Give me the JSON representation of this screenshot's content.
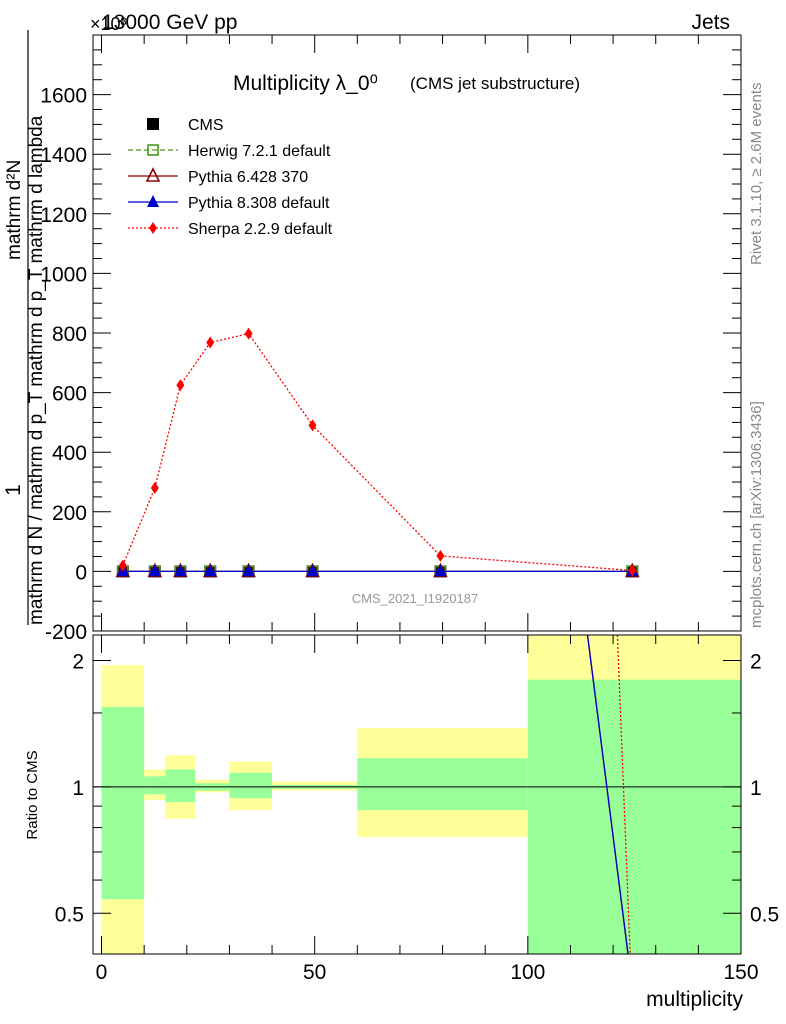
{
  "header": {
    "energy_label": "13000 GeV pp",
    "process_label": "Jets",
    "exponent_label": "×10³"
  },
  "side_labels": {
    "rivet": "Rivet 3.1.10, ≥ 2.6M events",
    "mcplots": "mcplots.cern.ch [arXiv:1306.3436]"
  },
  "chart_data": [
    {
      "type": "line",
      "title": "Multiplicity λ_0⁰",
      "subtitle": "(CMS jet substructure)",
      "watermark": "CMS_2021_I1920187",
      "ylabel_numerator": "1",
      "ylabel_denominator": "mathrm d N / mathrm d p_T mathrm d p_T mathrm d lambda",
      "ylabel_top": "mathrm d²N",
      "xlim": [
        -2,
        150
      ],
      "ylim": [
        -200,
        1800
      ],
      "y_scale_factor": 1000,
      "y_ticks": [
        -200,
        0,
        200,
        400,
        600,
        800,
        1000,
        1200,
        1400,
        1600
      ],
      "x": [
        5,
        12.5,
        18.5,
        25.5,
        34.5,
        49.5,
        79.5,
        124.5
      ],
      "legend_placement": "top-left",
      "series": [
        {
          "name": "CMS",
          "color": "#000000",
          "marker": "square",
          "line": "none",
          "values": [
            0,
            0,
            0,
            0,
            0,
            0,
            0,
            0
          ]
        },
        {
          "name": "Herwig 7.2.1 default",
          "color": "#4a9a1a",
          "marker": "open-square",
          "line": "dashed",
          "values": [
            0,
            0,
            0,
            0,
            0,
            0,
            0,
            0
          ]
        },
        {
          "name": "Pythia 6.428 370",
          "color": "#8b0000",
          "marker": "open-triangle",
          "line": "solid",
          "values": [
            0,
            0,
            0,
            0,
            0,
            0,
            0,
            0
          ]
        },
        {
          "name": "Pythia 8.308 default",
          "color": "#0000cc",
          "marker": "triangle",
          "line": "solid",
          "values": [
            0,
            0,
            0,
            0,
            0,
            0,
            0,
            0
          ]
        },
        {
          "name": "Sherpa 2.2.9 default",
          "color": "#ff0000",
          "marker": "diamond",
          "line": "dotted",
          "values": [
            20,
            280,
            625,
            768,
            798,
            490,
            52,
            3
          ]
        }
      ]
    },
    {
      "type": "area",
      "ylabel": "Ratio to CMS",
      "xlabel": "multiplicity",
      "xlim": [
        -2,
        150
      ],
      "ylim": [
        0.4,
        2.3
      ],
      "y_scale": "log",
      "y_ticks": [
        0.5,
        1,
        2
      ],
      "x_ticks": [
        0,
        50,
        100,
        150
      ],
      "bins": [
        {
          "x_low": 0,
          "x_high": 10,
          "stat_low": 0.54,
          "stat_high": 1.55,
          "total_low": 0.3,
          "total_high": 1.95
        },
        {
          "x_low": 10,
          "x_high": 15,
          "stat_low": 0.96,
          "stat_high": 1.06,
          "total_low": 0.93,
          "total_high": 1.1
        },
        {
          "x_low": 15,
          "x_high": 22,
          "stat_low": 0.92,
          "stat_high": 1.1,
          "total_low": 0.84,
          "total_high": 1.19
        },
        {
          "x_low": 22,
          "x_high": 30,
          "stat_low": 0.98,
          "stat_high": 1.02,
          "total_low": 0.97,
          "total_high": 1.04
        },
        {
          "x_low": 30,
          "x_high": 40,
          "stat_low": 0.94,
          "stat_high": 1.08,
          "total_low": 0.88,
          "total_high": 1.15
        },
        {
          "x_low": 40,
          "x_high": 60,
          "stat_low": 0.99,
          "stat_high": 1.01,
          "total_low": 0.98,
          "total_high": 1.03
        },
        {
          "x_low": 60,
          "x_high": 100,
          "stat_low": 0.88,
          "stat_high": 1.17,
          "total_low": 0.76,
          "total_high": 1.38
        },
        {
          "x_low": 100,
          "x_high": 150,
          "stat_low": 0.3,
          "stat_high": 1.8,
          "total_low": 0.3,
          "total_high": 2.4
        }
      ],
      "ratio_lines": [
        {
          "name": "Pythia 6.428 370",
          "color": "#8b0000",
          "style": "solid",
          "points": [
            [
              114,
              2.35
            ],
            [
              123.5,
              0.38
            ]
          ]
        },
        {
          "name": "Pythia 8.308 default",
          "color": "#0000cc",
          "style": "solid",
          "points": [
            [
              114,
              2.35
            ],
            [
              123.5,
              0.38
            ]
          ]
        },
        {
          "name": "Sherpa 2.2.9 default",
          "color": "#ff0000",
          "style": "dotted",
          "points": [
            [
              121,
              2.35
            ],
            [
              124,
              0.38
            ]
          ]
        }
      ],
      "band_colors": {
        "stat": "#99ff99",
        "total": "#ffff99"
      }
    }
  ]
}
